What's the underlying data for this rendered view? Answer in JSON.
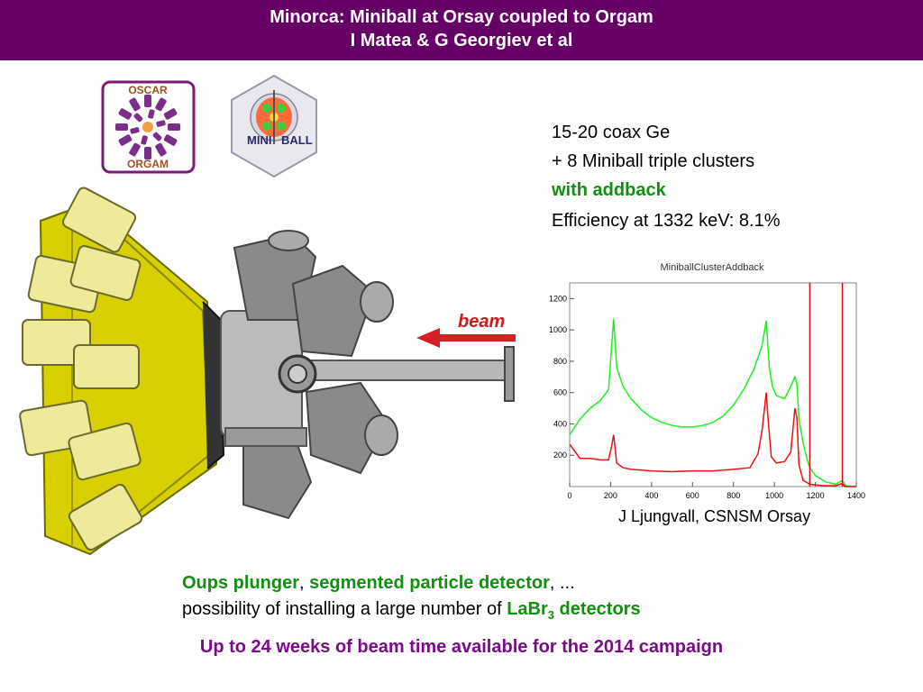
{
  "header": {
    "title_line1": "Minorca: Miniball at Orsay coupled to Orgam",
    "title_line2": "I Matea & G Georgiev et al",
    "background": "#660066"
  },
  "logos": {
    "oscar_top": "OSCAR",
    "orgam_bottom": "ORGAM",
    "miniball_left": "MINI",
    "miniball_right": "BALL"
  },
  "setup": {
    "beam_label": "beam"
  },
  "specs": {
    "line1": "15-20 coax Ge",
    "line2": "+ 8 Miniball triple clusters",
    "line3": "with addback",
    "efficiency": "Efficiency at 1332 keV: 8.1%"
  },
  "credit": "J Ljungvall, CSNSM Orsay",
  "bottom": {
    "oups": "Oups plunger",
    "sep1": ", ",
    "segmented": "segmented particle detector",
    "sep2": ", ...",
    "possibility": "possibility of installing a large number of ",
    "labr": "LaBr",
    "labr_sub": "3",
    "detectors": " detectors",
    "campaign": "Up to 24 weeks of beam time available for the 2014 campaign"
  },
  "chart_data": {
    "type": "line",
    "title": "MiniballClusterAddback",
    "xlim": [
      0,
      1400
    ],
    "ylim": [
      0,
      1300
    ],
    "xticks": [
      0,
      200,
      400,
      600,
      800,
      1000,
      1200,
      1400
    ],
    "yticks": [
      200,
      400,
      600,
      800,
      1000,
      1200
    ],
    "markers_x": [
      1173,
      1332
    ],
    "series": [
      {
        "color": "#22ee22",
        "x": [
          0,
          50,
          100,
          150,
          190,
          205,
          215,
          230,
          260,
          300,
          350,
          400,
          450,
          500,
          550,
          600,
          650,
          700,
          750,
          800,
          850,
          900,
          940,
          960,
          975,
          990,
          1010,
          1050,
          1080,
          1100,
          1110,
          1120,
          1140,
          1160,
          1173,
          1200,
          1250,
          1300,
          1332,
          1350,
          1400
        ],
        "values": [
          330,
          430,
          500,
          550,
          620,
          900,
          1070,
          760,
          640,
          560,
          490,
          440,
          410,
          390,
          380,
          380,
          390,
          410,
          450,
          520,
          620,
          750,
          900,
          1060,
          760,
          640,
          580,
          560,
          640,
          700,
          660,
          430,
          280,
          170,
          120,
          70,
          30,
          15,
          40,
          5,
          0
        ]
      },
      {
        "color": "#ee1111",
        "x": [
          0,
          50,
          100,
          150,
          190,
          205,
          215,
          230,
          260,
          300,
          400,
          500,
          600,
          700,
          800,
          880,
          920,
          940,
          960,
          970,
          985,
          1010,
          1050,
          1080,
          1100,
          1110,
          1120,
          1140,
          1173,
          1200,
          1250,
          1300,
          1332,
          1345,
          1400
        ],
        "values": [
          270,
          180,
          180,
          170,
          170,
          260,
          330,
          150,
          120,
          110,
          100,
          95,
          100,
          100,
          110,
          120,
          210,
          360,
          600,
          420,
          190,
          150,
          160,
          220,
          500,
          440,
          140,
          40,
          15,
          10,
          5,
          5,
          20,
          0,
          0
        ]
      }
    ]
  }
}
